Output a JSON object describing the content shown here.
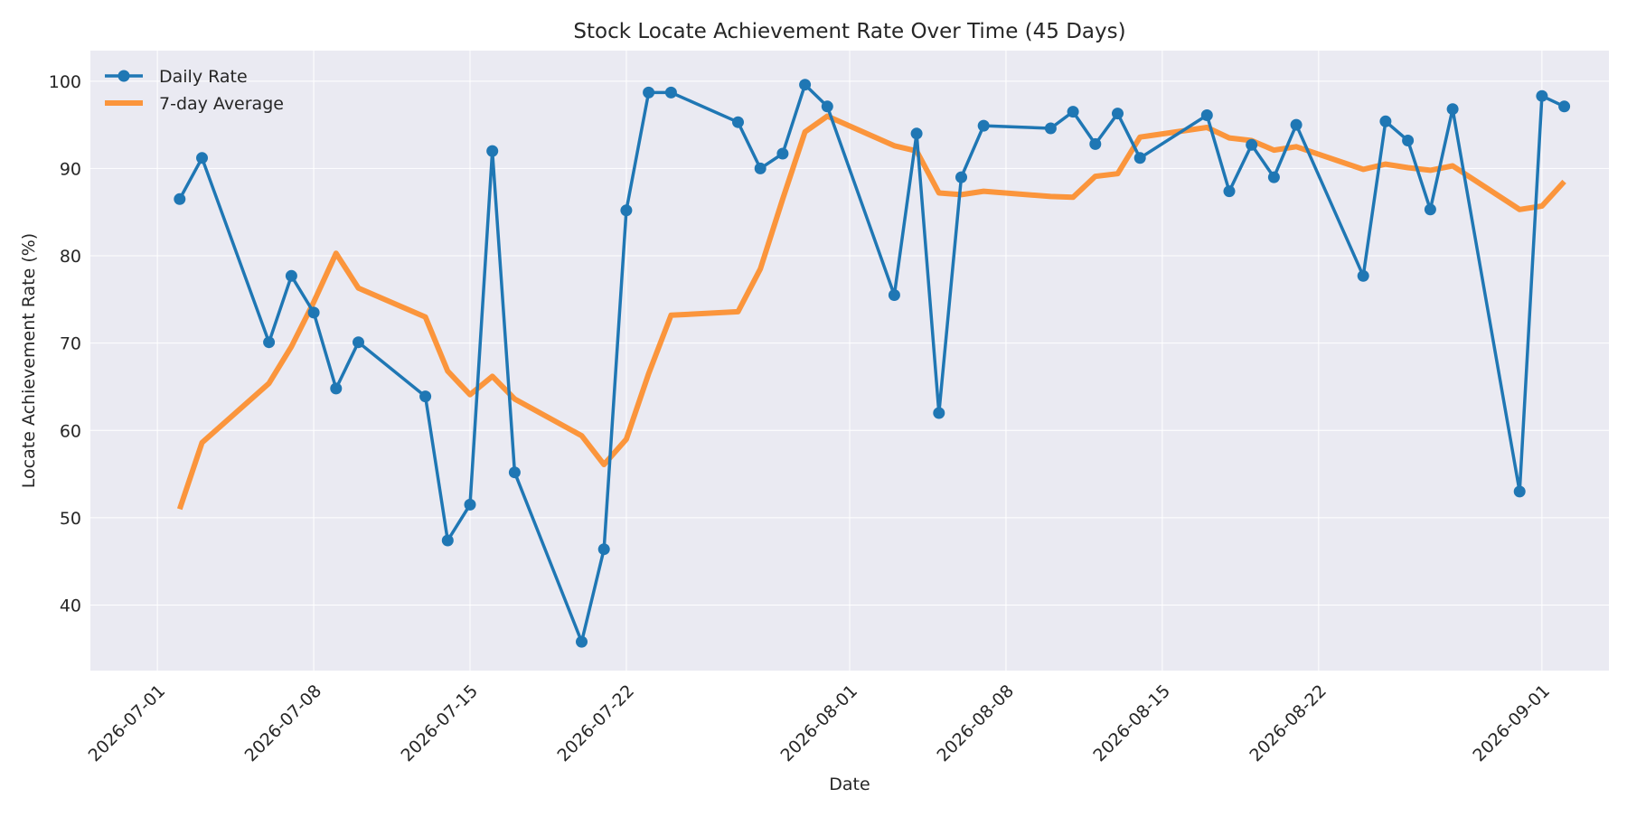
{
  "chart_data": {
    "type": "line",
    "title": "Stock Locate Achievement Rate Over Time (45 Days)",
    "xlabel": "Date",
    "ylabel": "Locate Achievement Rate (%)",
    "xlim": [
      "2026-06-28",
      "2026-09-04"
    ],
    "ylim": [
      32.5,
      103.5
    ],
    "grid": true,
    "legend_position": "top-left",
    "x_ticks": [
      "2026-07-01",
      "2026-07-08",
      "2026-07-15",
      "2026-07-22",
      "2026-08-01",
      "2026-08-08",
      "2026-08-15",
      "2026-08-22",
      "2026-09-01"
    ],
    "y_ticks": [
      40,
      50,
      60,
      70,
      80,
      90,
      100
    ],
    "colors": {
      "daily": "#1f77b4",
      "average": "#ff7f0e",
      "plot_bg": "#eaeaf2",
      "grid": "#ffffff"
    },
    "x": [
      "2026-07-02",
      "2026-07-03",
      "2026-07-06",
      "2026-07-07",
      "2026-07-08",
      "2026-07-09",
      "2026-07-10",
      "2026-07-13",
      "2026-07-14",
      "2026-07-15",
      "2026-07-16",
      "2026-07-17",
      "2026-07-20",
      "2026-07-21",
      "2026-07-22",
      "2026-07-23",
      "2026-07-24",
      "2026-07-27",
      "2026-07-28",
      "2026-07-29",
      "2026-07-30",
      "2026-07-31",
      "2026-08-03",
      "2026-08-04",
      "2026-08-05",
      "2026-08-06",
      "2026-08-07",
      "2026-08-10",
      "2026-08-11",
      "2026-08-12",
      "2026-08-13",
      "2026-08-14",
      "2026-08-17",
      "2026-08-18",
      "2026-08-19",
      "2026-08-20",
      "2026-08-21",
      "2026-08-24",
      "2026-08-25",
      "2026-08-26",
      "2026-08-27",
      "2026-08-28",
      "2026-08-31",
      "2026-09-01",
      "2026-09-02"
    ],
    "series": [
      {
        "name": "Daily Rate",
        "values": [
          86.5,
          91.2,
          70.1,
          77.7,
          73.5,
          64.8,
          70.1,
          63.9,
          47.4,
          51.5,
          92.0,
          55.2,
          35.8,
          46.4,
          85.2,
          98.7,
          98.7,
          95.3,
          90.0,
          91.7,
          99.6,
          97.1,
          75.5,
          94.0,
          62.0,
          89.0,
          94.9,
          94.6,
          96.5,
          92.8,
          96.3,
          91.2,
          96.1,
          87.4,
          92.7,
          89.0,
          95.0,
          77.7,
          95.4,
          93.2,
          85.3,
          96.8,
          53.0,
          98.3,
          97.1
        ]
      },
      {
        "name": "7-day Average",
        "values": [
          51.0,
          58.6,
          65.4,
          69.6,
          74.7,
          80.3,
          76.3,
          73.0,
          66.8,
          64.1,
          66.2,
          63.6,
          59.4,
          56.1,
          59.0,
          66.5,
          73.2,
          73.6,
          78.5,
          86.5,
          94.2,
          96.0,
          92.6,
          92.0,
          87.2,
          87.0,
          87.4,
          86.8,
          86.7,
          89.1,
          89.4,
          93.6,
          94.7,
          93.5,
          93.2,
          92.1,
          92.5,
          89.9,
          90.5,
          90.1,
          89.8,
          90.3,
          85.3,
          85.7,
          88.5
        ]
      }
    ]
  }
}
